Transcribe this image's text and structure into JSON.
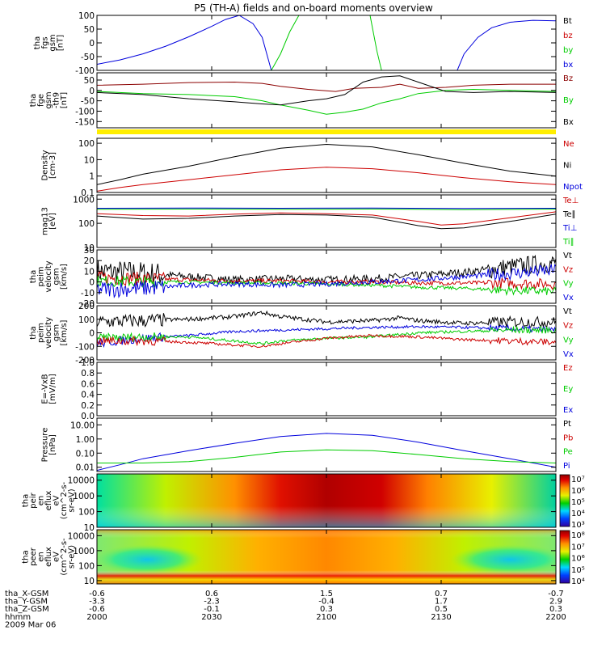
{
  "title": "P5 (TH-A) fields and on-board moments overview",
  "colors": {
    "black": "#000000",
    "red": "#cc0000",
    "green": "#00cc00",
    "blue": "#0000dd",
    "darkred": "#8b0000",
    "yellow": "#ffee00"
  },
  "chart_data": [
    {
      "type": "line",
      "id": "fgs",
      "ylabel": [
        "tha",
        "fgs",
        "gsm",
        "[nT]"
      ],
      "ylim": [
        -100,
        100
      ],
      "yticks": [
        "100",
        "50",
        "0",
        "-50",
        "-100"
      ],
      "yticks_v": [
        100,
        50,
        0,
        -50,
        -100
      ],
      "legend": [
        {
          "label": "Bt",
          "color": "#000000"
        },
        {
          "label": "bz",
          "color": "#cc0000"
        },
        {
          "label": "by",
          "color": "#00cc00"
        },
        {
          "label": "bx",
          "color": "#0000dd"
        }
      ],
      "series": [
        {
          "color": "#0000dd",
          "x": [
            0,
            5,
            10,
            15,
            20,
            25,
            28,
            31,
            34,
            36,
            38
          ],
          "y": [
            -78,
            -62,
            -40,
            -12,
            22,
            60,
            85,
            100,
            70,
            20,
            -100
          ]
        },
        {
          "color": "#00cc00",
          "x": [
            38,
            40,
            42,
            44
          ],
          "y": [
            -100,
            -40,
            40,
            100
          ]
        },
        {
          "color": "#00cc00",
          "x": [
            59.5,
            60.2,
            61,
            62
          ],
          "y": [
            100,
            40,
            -30,
            -100
          ]
        },
        {
          "color": "#0000dd",
          "x": [
            78.5,
            80,
            83,
            86,
            90,
            95,
            100
          ],
          "y": [
            -100,
            -40,
            20,
            55,
            75,
            82,
            80
          ]
        }
      ]
    },
    {
      "type": "line",
      "id": "fge",
      "ylabel": [
        "tha",
        "fge",
        "gsm",
        "-th9",
        "[nT]"
      ],
      "ylim": [
        -180,
        85
      ],
      "yticks": [
        "50",
        "0",
        "-50",
        "-100",
        "-150"
      ],
      "yticks_v": [
        50,
        0,
        -50,
        -100,
        -150
      ],
      "legend": [
        {
          "label": "Bz",
          "color": "#8b0000"
        },
        {
          "label": "By",
          "color": "#00cc00"
        },
        {
          "label": "Bx",
          "color": "#000000"
        }
      ],
      "series": [
        {
          "color": "#8b0000",
          "x": [
            0,
            10,
            20,
            30,
            36,
            40,
            46,
            52,
            56,
            62,
            66,
            70,
            76,
            82,
            90,
            100
          ],
          "y": [
            25,
            30,
            38,
            40,
            34,
            20,
            5,
            -5,
            10,
            15,
            30,
            10,
            15,
            25,
            30,
            30
          ]
        },
        {
          "color": "#00cc00",
          "x": [
            0,
            10,
            20,
            30,
            36,
            40,
            46,
            50,
            54,
            58,
            62,
            66,
            70,
            76,
            82,
            90,
            100
          ],
          "y": [
            -5,
            -15,
            -20,
            -30,
            -50,
            -70,
            -95,
            -115,
            -105,
            -90,
            -60,
            -40,
            -15,
            0,
            5,
            0,
            -5
          ]
        },
        {
          "color": "#000000",
          "x": [
            0,
            10,
            20,
            30,
            36,
            40,
            46,
            50,
            54,
            58,
            62,
            66,
            70,
            76,
            82,
            90,
            100
          ],
          "y": [
            -10,
            -20,
            -40,
            -55,
            -65,
            -70,
            -50,
            -40,
            -20,
            40,
            65,
            70,
            40,
            -5,
            -10,
            -5,
            -10
          ]
        }
      ]
    },
    {
      "type": "line",
      "id": "density",
      "ylabel": [
        "Density",
        "[cm-3]"
      ],
      "yscale": "log",
      "ylim": [
        0.1,
        200
      ],
      "yticks": [
        "100",
        "10",
        "1",
        "0.1"
      ],
      "yticks_v": [
        100,
        10,
        1,
        0.1
      ],
      "legend": [
        {
          "label": "Ne",
          "color": "#cc0000"
        },
        {
          "label": "Ni",
          "color": "#000000"
        },
        {
          "label": "Npot",
          "color": "#0000dd"
        }
      ],
      "series": [
        {
          "color": "#000000",
          "x": [
            0,
            5,
            10,
            20,
            30,
            40,
            50,
            60,
            70,
            80,
            90,
            100
          ],
          "y": [
            0.3,
            0.6,
            1.3,
            4,
            15,
            50,
            85,
            60,
            20,
            6,
            2,
            1
          ]
        },
        {
          "color": "#cc0000",
          "x": [
            0,
            5,
            10,
            20,
            30,
            40,
            50,
            60,
            70,
            80,
            90,
            100
          ],
          "y": [
            0.12,
            0.2,
            0.3,
            0.6,
            1.2,
            2.4,
            3.5,
            2.8,
            1.6,
            0.8,
            0.45,
            0.3
          ]
        }
      ]
    },
    {
      "type": "line",
      "id": "mag",
      "ylabel": [
        "mag13",
        "[eV]"
      ],
      "yscale": "log",
      "ylim": [
        10,
        1500
      ],
      "yticks": [
        "1000",
        "100",
        "10"
      ],
      "yticks_v": [
        1000,
        100,
        10
      ],
      "legend": [
        {
          "label": "Te⊥",
          "color": "#cc0000"
        },
        {
          "label": "Te∥",
          "color": "#000000"
        },
        {
          "label": "Ti⊥",
          "color": "#0000dd"
        },
        {
          "label": "Ti∥",
          "color": "#00cc00"
        }
      ],
      "series": [
        {
          "color": "#0000dd",
          "x": [
            0,
            20,
            40,
            60,
            80,
            100
          ],
          "y": [
            420,
            430,
            420,
            430,
            410,
            420
          ]
        },
        {
          "color": "#00cc00",
          "x": [
            0,
            20,
            40,
            60,
            80,
            100
          ],
          "y": [
            380,
            390,
            380,
            390,
            370,
            390
          ]
        },
        {
          "color": "#cc0000",
          "x": [
            0,
            10,
            20,
            30,
            40,
            50,
            60,
            70,
            75,
            80,
            90,
            100
          ],
          "y": [
            250,
            210,
            200,
            240,
            270,
            250,
            220,
            120,
            85,
            95,
            170,
            300
          ]
        },
        {
          "color": "#000000",
          "x": [
            0,
            10,
            20,
            30,
            40,
            50,
            60,
            70,
            75,
            80,
            90,
            100
          ],
          "y": [
            200,
            150,
            160,
            200,
            230,
            220,
            180,
            80,
            60,
            65,
            120,
            240
          ]
        }
      ]
    },
    {
      "type": "line",
      "id": "velocity-esa",
      "ylabel": [
        "tha",
        "peim",
        "velocity",
        "gsm",
        "[km/s]"
      ],
      "ylim": [
        -20,
        30
      ],
      "yticks": [
        "30",
        "20",
        "10",
        "0",
        "-10",
        "-20"
      ],
      "yticks_v": [
        30,
        20,
        10,
        0,
        -10,
        -20
      ],
      "legend": [
        {
          "label": "Vt",
          "color": "#000000"
        },
        {
          "label": "Vz",
          "color": "#cc0000"
        },
        {
          "label": "Vy",
          "color": "#00cc00"
        },
        {
          "label": "Vx",
          "color": "#0000dd"
        }
      ],
      "series": [
        {
          "color": "#000000",
          "noise": 9,
          "x": [
            0,
            10,
            20,
            30,
            40,
            50,
            60,
            70,
            80,
            90,
            100
          ],
          "y": [
            10,
            8,
            5,
            2,
            3,
            2,
            3,
            6,
            9,
            14,
            18
          ]
        },
        {
          "color": "#cc0000",
          "noise": 5,
          "x": [
            0,
            10,
            20,
            30,
            40,
            50,
            60,
            70,
            80,
            90,
            100
          ],
          "y": [
            4,
            3,
            2,
            1,
            1,
            0,
            0,
            -1,
            -1,
            -1,
            -2
          ]
        },
        {
          "color": "#00cc00",
          "noise": 4,
          "x": [
            0,
            10,
            20,
            30,
            40,
            50,
            60,
            70,
            80,
            90,
            100
          ],
          "y": [
            1,
            0,
            0,
            -1,
            -1,
            -2,
            -3,
            -5,
            -6,
            -8,
            -9
          ]
        },
        {
          "color": "#0000dd",
          "noise": 6,
          "x": [
            0,
            10,
            20,
            30,
            40,
            50,
            60,
            70,
            80,
            90,
            100
          ],
          "y": [
            -7,
            -6,
            -3,
            -2,
            -3,
            -2,
            0,
            2,
            5,
            8,
            11
          ]
        }
      ]
    },
    {
      "type": "line",
      "id": "velocity-gsm",
      "ylabel": [
        "tha",
        "peim",
        "velocity",
        "gsm",
        "[km/s]"
      ],
      "ylim": [
        -200,
        200
      ],
      "yticks": [
        "200",
        "100",
        "0",
        "-100",
        "-200"
      ],
      "yticks_v": [
        200,
        100,
        0,
        -100,
        -200
      ],
      "legend": [
        {
          "label": "Vt",
          "color": "#000000"
        },
        {
          "label": "Vz",
          "color": "#cc0000"
        },
        {
          "label": "Vy",
          "color": "#00cc00"
        },
        {
          "label": "Vx",
          "color": "#0000dd"
        }
      ],
      "series": [
        {
          "color": "#000000",
          "noise": 40,
          "x": [
            0,
            10,
            20,
            30,
            36,
            40,
            50,
            60,
            66,
            70,
            80,
            90,
            100
          ],
          "y": [
            80,
            90,
            100,
            120,
            150,
            120,
            80,
            90,
            110,
            90,
            70,
            80,
            80
          ]
        },
        {
          "color": "#0000dd",
          "noise": 25,
          "x": [
            0,
            10,
            20,
            30,
            40,
            50,
            60,
            70,
            80,
            90,
            100
          ],
          "y": [
            -80,
            -40,
            -20,
            10,
            20,
            30,
            40,
            45,
            40,
            30,
            20
          ]
        },
        {
          "color": "#00cc00",
          "noise": 25,
          "x": [
            0,
            10,
            20,
            30,
            36,
            40,
            50,
            60,
            70,
            80,
            90,
            100
          ],
          "y": [
            -40,
            -30,
            -30,
            -60,
            -80,
            -60,
            -40,
            -30,
            0,
            10,
            20,
            20
          ]
        },
        {
          "color": "#cc0000",
          "noise": 25,
          "x": [
            0,
            10,
            20,
            30,
            36,
            40,
            50,
            60,
            70,
            80,
            90,
            100
          ],
          "y": [
            -60,
            -60,
            -70,
            -90,
            -100,
            -80,
            -40,
            -20,
            -30,
            -50,
            -60,
            -70
          ]
        }
      ]
    },
    {
      "type": "line",
      "id": "efield",
      "ylabel": [
        "E=-VxB",
        "[mV/m]"
      ],
      "ylim": [
        0,
        1
      ],
      "yticks": [
        "1.0",
        "0.8",
        "0.6",
        "0.4",
        "0.2",
        "0.0"
      ],
      "yticks_v": [
        1.0,
        0.8,
        0.6,
        0.4,
        0.2,
        0.0
      ],
      "legend": [
        {
          "label": "Ez",
          "color": "#cc0000"
        },
        {
          "label": "Ey",
          "color": "#00cc00"
        },
        {
          "label": "Ex",
          "color": "#0000dd"
        }
      ],
      "series": []
    },
    {
      "type": "line",
      "id": "pressure",
      "ylabel": [
        "Pressure",
        "[nPa]"
      ],
      "yscale": "log",
      "ylim": [
        0.005,
        30
      ],
      "yticks": [
        "10.00",
        "1.00",
        "0.10",
        "0.01"
      ],
      "yticks_v": [
        10,
        1,
        0.1,
        0.01
      ],
      "legend": [
        {
          "label": "Pt",
          "color": "#000000"
        },
        {
          "label": "Pb",
          "color": "#cc0000"
        },
        {
          "label": "Pe",
          "color": "#00cc00"
        },
        {
          "label": "Pi",
          "color": "#0000dd"
        }
      ],
      "series": [
        {
          "color": "#0000dd",
          "x": [
            0,
            5,
            10,
            20,
            30,
            40,
            50,
            60,
            70,
            80,
            90,
            100
          ],
          "y": [
            0.006,
            0.015,
            0.04,
            0.15,
            0.5,
            1.5,
            2.5,
            1.8,
            0.6,
            0.15,
            0.04,
            0.01
          ]
        },
        {
          "color": "#00cc00",
          "x": [
            0,
            10,
            20,
            30,
            40,
            50,
            60,
            70,
            80,
            90,
            100
          ],
          "y": [
            0.02,
            0.02,
            0.025,
            0.05,
            0.12,
            0.17,
            0.15,
            0.08,
            0.04,
            0.025,
            0.02
          ]
        }
      ]
    },
    {
      "type": "heatmap",
      "id": "ion-spectrogram",
      "ylabel": [
        "tha",
        "peir",
        "en",
        "eflux",
        "eV",
        "(cm^2-s-",
        "sr-eV)"
      ],
      "yscale": "log",
      "ylim": [
        10,
        25000
      ],
      "yticks": [
        "10000",
        "1000",
        "100",
        "10"
      ],
      "yticks_v": [
        10000,
        1000,
        100,
        10
      ],
      "colorbar": [
        "10⁷",
        "10⁶",
        "10⁵",
        "10⁴",
        "10³"
      ]
    },
    {
      "type": "heatmap",
      "id": "electron-spectrogram",
      "ylabel": [
        "tha",
        "peer",
        "en",
        "eflux",
        "eV",
        "(cm^2-s-",
        "sr-eV)"
      ],
      "yscale": "log",
      "ylim": [
        6,
        25000
      ],
      "yticks": [
        "10000",
        "1000",
        "100",
        "10"
      ],
      "yticks_v": [
        10000,
        1000,
        100,
        10
      ],
      "colorbar": [
        "10⁸",
        "10⁷",
        "10⁶",
        "10⁵",
        "10⁴"
      ]
    }
  ],
  "xaxis": {
    "row_labels": [
      "tha_X-GSM",
      "tha_Y-GSM",
      "tha_Z-GSM",
      "hhmm",
      "2009 Mar 06"
    ],
    "columns": [
      [
        "-0.6",
        "-3.3",
        "-0.6",
        "2000"
      ],
      [
        "0.6",
        "-2.3",
        "-0.1",
        "2030"
      ],
      [
        "1.5",
        "-0.4",
        "0.3",
        "2100"
      ],
      [
        "0.7",
        "1.7",
        "0.5",
        "2130"
      ],
      [
        "-0.7",
        "2.9",
        "0.3",
        "2200"
      ]
    ]
  }
}
